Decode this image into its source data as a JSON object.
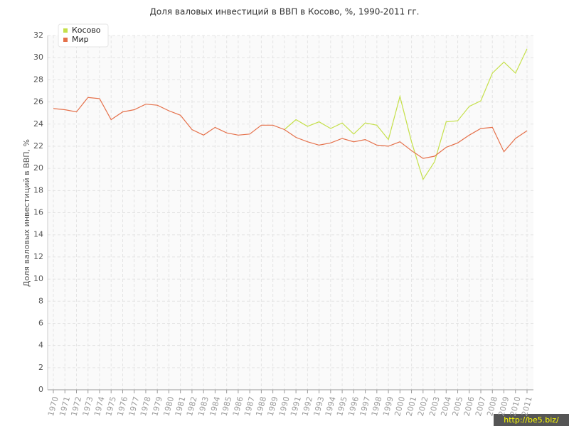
{
  "chart_data": {
    "type": "line",
    "title": "Доля валовых инвестиций в ВВП в Косово, %, 1990-2011 гг.",
    "y_label": "Доля валовых инвестиций в ВВП, %",
    "watermark": "http://be5.biz/",
    "categories": [
      "1970",
      "1971",
      "1972",
      "1973",
      "1974",
      "1975",
      "1976",
      "1977",
      "1978",
      "1979",
      "1980",
      "1981",
      "1982",
      "1983",
      "1984",
      "1985",
      "1986",
      "1987",
      "1988",
      "1989",
      "1990",
      "1991",
      "1992",
      "1993",
      "1994",
      "1995",
      "1996",
      "1997",
      "1998",
      "1999",
      "2000",
      "2001",
      "2002",
      "2003",
      "2004",
      "2005",
      "2006",
      "2007",
      "2008",
      "2009",
      "2010",
      "2011"
    ],
    "series": [
      {
        "name": "Косово",
        "color": "#c5e04a",
        "values": [
          null,
          null,
          null,
          null,
          null,
          null,
          null,
          null,
          null,
          null,
          null,
          null,
          null,
          null,
          null,
          null,
          null,
          null,
          null,
          null,
          23.5,
          24.4,
          23.8,
          24.2,
          23.6,
          24.1,
          23.1,
          24.1,
          23.9,
          22.6,
          26.5,
          22.4,
          19.0,
          20.6,
          24.2,
          24.3,
          25.6,
          26.1,
          28.6,
          29.6,
          28.6,
          30.8
        ]
      },
      {
        "name": "Мир",
        "color": "#e5704a",
        "values": [
          25.4,
          25.3,
          25.1,
          26.4,
          26.3,
          24.4,
          25.1,
          25.3,
          25.8,
          25.7,
          25.2,
          24.8,
          23.5,
          23.0,
          23.7,
          23.2,
          23.0,
          23.1,
          23.9,
          23.9,
          23.5,
          22.8,
          22.4,
          22.1,
          22.3,
          22.7,
          22.4,
          22.6,
          22.1,
          22.0,
          22.4,
          21.6,
          20.9,
          21.1,
          21.9,
          22.3,
          23.0,
          23.6,
          23.7,
          21.5,
          22.7,
          23.4
        ]
      }
    ],
    "ylim": [
      0,
      32
    ],
    "yticks": [
      0,
      2,
      4,
      6,
      8,
      10,
      12,
      14,
      16,
      18,
      20,
      22,
      24,
      26,
      28,
      30,
      32
    ],
    "grid": true
  }
}
